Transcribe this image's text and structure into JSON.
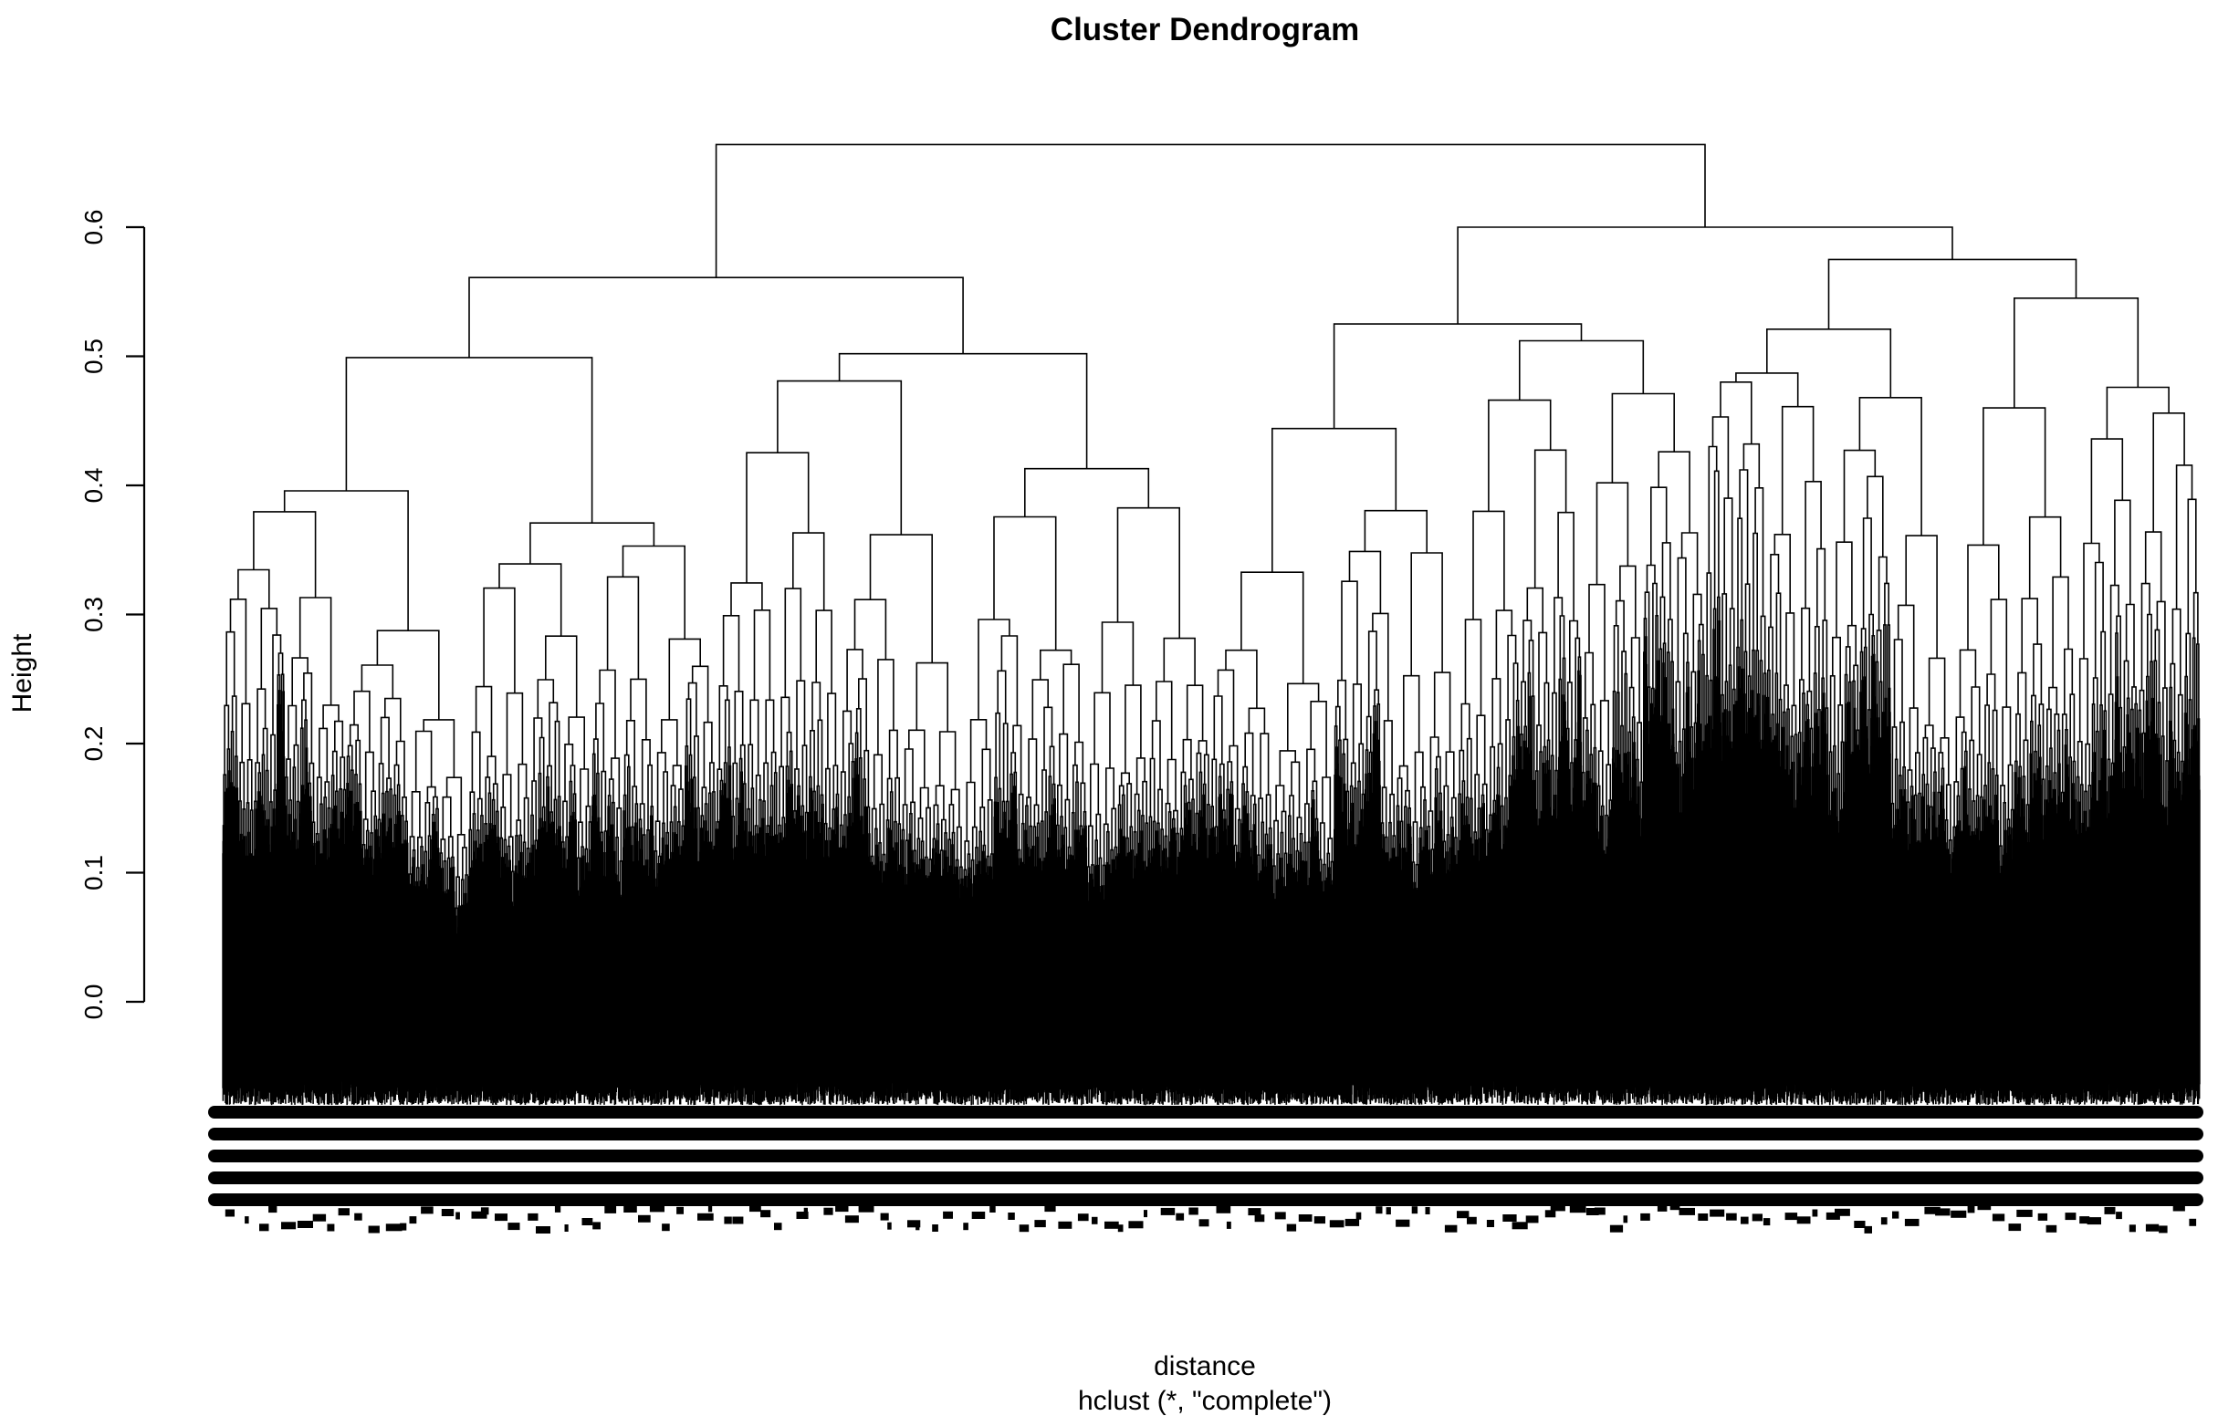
{
  "chart_data": {
    "type": "dendrogram",
    "title": "Cluster Dendrogram",
    "xlabel": "distance",
    "subtitle": "hclust (*, \"complete\")",
    "ylabel": "Height",
    "ylim": [
      0,
      0.68
    ],
    "yticks": [
      0.0,
      0.1,
      0.2,
      0.3,
      0.4,
      0.5,
      0.6
    ],
    "ytick_labels": [
      "0.0",
      "0.1",
      "0.2",
      "0.3",
      "0.4",
      "0.5",
      "0.6"
    ],
    "line_color": "#000000",
    "top_merges": [
      {
        "height": 0.664,
        "left": 0.561,
        "right": 0.6
      },
      {
        "height": 0.561,
        "left": 0.499,
        "right": 0.502
      },
      {
        "height": 0.6,
        "left": 0.525,
        "right": 0.575
      },
      {
        "height": 0.525,
        "left": 0.444,
        "right": 0.512
      },
      {
        "height": 0.575,
        "left": 0.521,
        "right": 0.545
      },
      {
        "height": 0.512,
        "left": 0.466,
        "right": 0.471
      },
      {
        "height": 0.471,
        "left": 0.402,
        "right": 0.426
      },
      {
        "height": 0.521,
        "left": 0.487,
        "right": 0.468
      },
      {
        "height": 0.487,
        "left": 0.48,
        "right": 0.461
      },
      {
        "height": 0.48,
        "left": 0.453,
        "right": 0.432
      },
      {
        "height": 0.453,
        "left": 0.43,
        "right": 0.39
      },
      {
        "height": 0.545,
        "left": 0.46,
        "right": 0.476
      },
      {
        "height": 0.476,
        "left": 0.436,
        "right": 0.456
      },
      {
        "height": 0.461,
        "left": 0.362,
        "right": 0.403
      },
      {
        "height": 0.432,
        "left": 0.412,
        "right": 0.398
      }
    ]
  }
}
